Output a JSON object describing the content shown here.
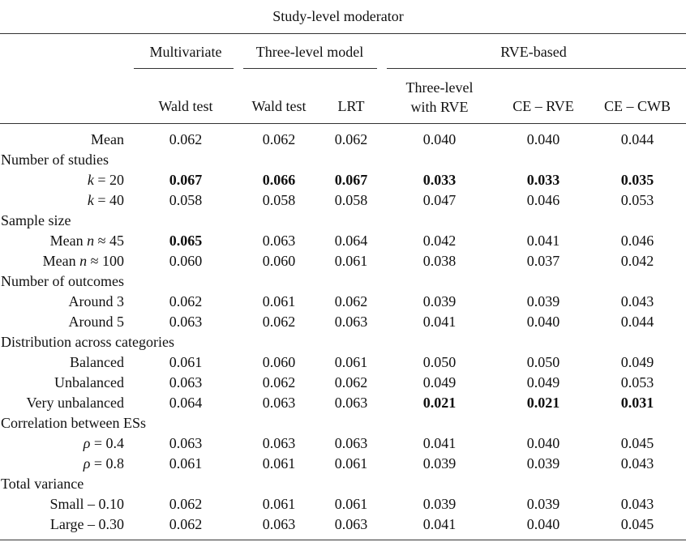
{
  "table": {
    "title": "Study-level moderator",
    "groups": [
      "Multivariate",
      "Three-level model",
      "RVE-based"
    ],
    "columns": [
      "Wald test",
      "Wald test",
      "LRT",
      "Three-level\nwith RVE",
      "CE – RVE",
      "CE – CWB"
    ],
    "rows": [
      {
        "type": "data",
        "label": "Mean",
        "values": [
          "0.062",
          "0.062",
          "0.062",
          "0.040",
          "0.040",
          "0.044"
        ],
        "bold": [
          false,
          false,
          false,
          false,
          false,
          false
        ]
      },
      {
        "type": "section",
        "label": "Number of studies"
      },
      {
        "type": "data",
        "label": "k = 20",
        "values": [
          "0.067",
          "0.066",
          "0.067",
          "0.033",
          "0.033",
          "0.035"
        ],
        "bold": [
          true,
          true,
          true,
          true,
          true,
          true
        ]
      },
      {
        "type": "data",
        "label": "k = 40",
        "values": [
          "0.058",
          "0.058",
          "0.058",
          "0.047",
          "0.046",
          "0.053"
        ],
        "bold": [
          false,
          false,
          false,
          false,
          false,
          false
        ]
      },
      {
        "type": "section",
        "label": "Sample size"
      },
      {
        "type": "data",
        "label": "Mean n ≈ 45",
        "values": [
          "0.065",
          "0.063",
          "0.064",
          "0.042",
          "0.041",
          "0.046"
        ],
        "bold": [
          true,
          false,
          false,
          false,
          false,
          false
        ]
      },
      {
        "type": "data",
        "label": "Mean n ≈ 100",
        "values": [
          "0.060",
          "0.060",
          "0.061",
          "0.038",
          "0.037",
          "0.042"
        ],
        "bold": [
          false,
          false,
          false,
          false,
          false,
          false
        ]
      },
      {
        "type": "section",
        "label": "Number of outcomes"
      },
      {
        "type": "data",
        "label": "Around 3",
        "values": [
          "0.062",
          "0.061",
          "0.062",
          "0.039",
          "0.039",
          "0.043"
        ],
        "bold": [
          false,
          false,
          false,
          false,
          false,
          false
        ]
      },
      {
        "type": "data",
        "label": "Around 5",
        "values": [
          "0.063",
          "0.062",
          "0.063",
          "0.041",
          "0.040",
          "0.044"
        ],
        "bold": [
          false,
          false,
          false,
          false,
          false,
          false
        ]
      },
      {
        "type": "section",
        "label": "Distribution across categories"
      },
      {
        "type": "data",
        "label": "Balanced",
        "values": [
          "0.061",
          "0.060",
          "0.061",
          "0.050",
          "0.050",
          "0.049"
        ],
        "bold": [
          false,
          false,
          false,
          false,
          false,
          false
        ]
      },
      {
        "type": "data",
        "label": "Unbalanced",
        "values": [
          "0.063",
          "0.062",
          "0.062",
          "0.049",
          "0.049",
          "0.053"
        ],
        "bold": [
          false,
          false,
          false,
          false,
          false,
          false
        ]
      },
      {
        "type": "data",
        "label": "Very unbalanced",
        "values": [
          "0.064",
          "0.063",
          "0.063",
          "0.021",
          "0.021",
          "0.031"
        ],
        "bold": [
          false,
          false,
          false,
          true,
          true,
          true
        ]
      },
      {
        "type": "section",
        "label": "Correlation between ESs"
      },
      {
        "type": "data",
        "label": "ρ = 0.4",
        "values": [
          "0.063",
          "0.063",
          "0.063",
          "0.041",
          "0.040",
          "0.045"
        ],
        "bold": [
          false,
          false,
          false,
          false,
          false,
          false
        ]
      },
      {
        "type": "data",
        "label": "ρ = 0.8",
        "values": [
          "0.061",
          "0.061",
          "0.061",
          "0.039",
          "0.039",
          "0.043"
        ],
        "bold": [
          false,
          false,
          false,
          false,
          false,
          false
        ]
      },
      {
        "type": "section",
        "label": "Total variance"
      },
      {
        "type": "data",
        "label": "Small – 0.10",
        "values": [
          "0.062",
          "0.061",
          "0.061",
          "0.039",
          "0.039",
          "0.043"
        ],
        "bold": [
          false,
          false,
          false,
          false,
          false,
          false
        ]
      },
      {
        "type": "data",
        "label": "Large – 0.30",
        "values": [
          "0.062",
          "0.063",
          "0.063",
          "0.041",
          "0.040",
          "0.045"
        ],
        "bold": [
          false,
          false,
          false,
          false,
          false,
          false
        ]
      }
    ]
  }
}
